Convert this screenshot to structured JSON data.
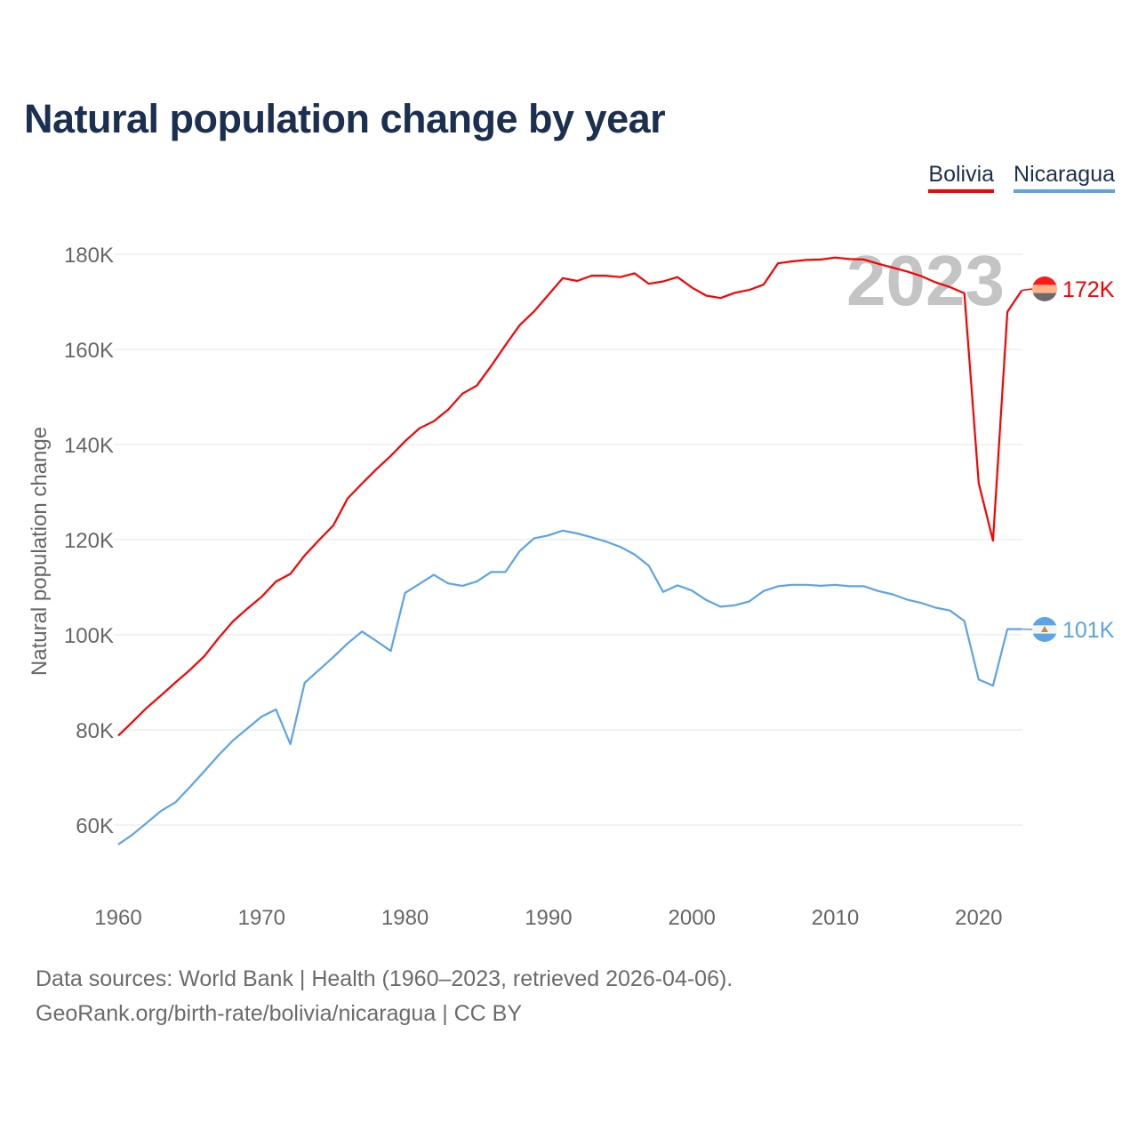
{
  "chart_data": {
    "type": "line",
    "title": "Natural population change by year",
    "xlabel": "",
    "ylabel": "Natural population change",
    "ylim": [
      50000,
      185000
    ],
    "xlim": [
      1960,
      2023
    ],
    "grid": true,
    "legend_position": "top-right",
    "x_ticks": [
      1960,
      1970,
      1980,
      1990,
      2000,
      2010,
      2020
    ],
    "x_tick_labels": [
      "1960",
      "1970",
      "1980",
      "1990",
      "2000",
      "2010",
      "2020"
    ],
    "y_ticks": [
      60000,
      80000,
      100000,
      120000,
      140000,
      160000,
      180000
    ],
    "y_tick_labels": [
      "60K",
      "80K",
      "100K",
      "120K",
      "140K",
      "160K",
      "180K"
    ],
    "current_year_label": "2023",
    "x": [
      1960,
      1961,
      1962,
      1963,
      1964,
      1965,
      1966,
      1967,
      1968,
      1969,
      1970,
      1971,
      1972,
      1973,
      1974,
      1975,
      1976,
      1977,
      1978,
      1979,
      1980,
      1981,
      1982,
      1983,
      1984,
      1985,
      1986,
      1987,
      1988,
      1989,
      1990,
      1991,
      1992,
      1993,
      1994,
      1995,
      1996,
      1997,
      1998,
      1999,
      2000,
      2001,
      2002,
      2003,
      2004,
      2005,
      2006,
      2007,
      2008,
      2009,
      2010,
      2011,
      2012,
      2013,
      2014,
      2015,
      2016,
      2017,
      2018,
      2019,
      2020,
      2021,
      2022,
      2023
    ],
    "series": [
      {
        "name": "Bolivia",
        "color": "#ff0000",
        "end_label": "172K",
        "flag_colors": [
          "#ff1a1a",
          "#ffb38a",
          "#6b6b6b"
        ],
        "values": [
          78800,
          81700,
          84700,
          87300,
          90000,
          92600,
          95500,
          99300,
          102800,
          105500,
          108000,
          111200,
          112800,
          116700,
          119900,
          123000,
          128700,
          131800,
          134800,
          137600,
          140700,
          143400,
          144900,
          147300,
          150700,
          152400,
          156500,
          160900,
          165100,
          168000,
          171500,
          175000,
          174400,
          175500,
          175500,
          175200,
          176000,
          173800,
          174300,
          175200,
          173000,
          171300,
          170800,
          171900,
          172500,
          173600,
          178100,
          178500,
          178800,
          178900,
          179300,
          179000,
          178900,
          178000,
          177200,
          176400,
          175400,
          174100,
          173100,
          171800,
          131900,
          119800,
          167900,
          172400
        ]
      },
      {
        "name": "Nicaragua",
        "color": "#5ba4e8",
        "end_label": "101K",
        "flag_colors": [
          "#5ba4e8",
          "#f4f4f4",
          "#5ba4e8"
        ],
        "values": [
          55900,
          58000,
          60500,
          63000,
          64800,
          68000,
          71300,
          74700,
          77800,
          80300,
          82800,
          84300,
          77000,
          89900,
          92600,
          95300,
          98200,
          100700,
          98700,
          96600,
          108800,
          110700,
          112600,
          110800,
          110300,
          111200,
          113200,
          113200,
          117600,
          120300,
          120900,
          121900,
          121300,
          120500,
          119600,
          118500,
          116900,
          114500,
          109000,
          110400,
          109300,
          107300,
          105900,
          106200,
          107000,
          109200,
          110200,
          110500,
          110500,
          110300,
          110500,
          110200,
          110200,
          109200,
          108500,
          107400,
          106700,
          105700,
          105100,
          102900,
          90600,
          89300,
          101200,
          101200
        ]
      }
    ]
  },
  "footer": {
    "sources": "Data sources: World Bank | Health (1960–2023, retrieved 2026-04-06).",
    "credit": "GeoRank.org/birth-rate/bolivia/nicaragua | CC BY"
  }
}
